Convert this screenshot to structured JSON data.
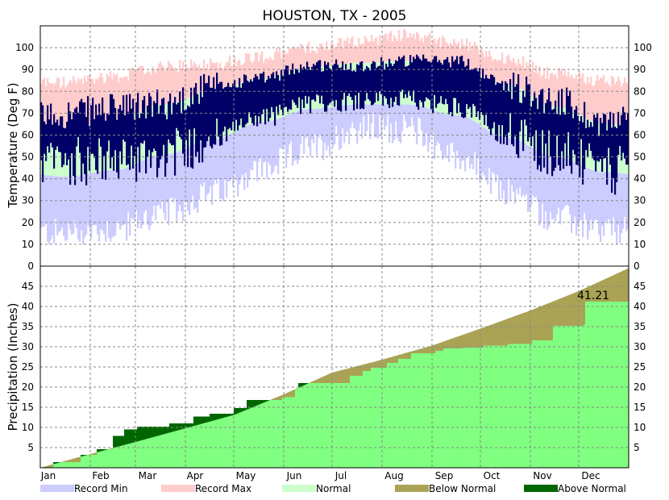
{
  "chart_data": {
    "type": "climate-summary",
    "title": "HOUSTON, TX - 2005",
    "year": 2005,
    "months": [
      "Jan",
      "Feb",
      "Mar",
      "Apr",
      "May",
      "Jun",
      "Jul",
      "Aug",
      "Sep",
      "Oct",
      "Nov",
      "Dec"
    ],
    "temperature": {
      "ylabel": "Temperature (Deg F)",
      "ylim": [
        0,
        110
      ],
      "yticks": [
        0,
        10,
        20,
        30,
        40,
        50,
        60,
        70,
        80,
        90,
        100
      ],
      "normal_high_monthly": [
        63,
        67,
        74,
        80,
        86,
        91,
        93,
        94,
        90,
        83,
        73,
        65
      ],
      "normal_low_monthly": [
        41,
        44,
        51,
        58,
        66,
        72,
        74,
        74,
        69,
        59,
        50,
        43
      ],
      "record_high_monthly": [
        84,
        87,
        91,
        93,
        96,
        100,
        103,
        106,
        102,
        95,
        88,
        85
      ],
      "record_low_monthly": [
        15,
        17,
        24,
        33,
        44,
        54,
        63,
        63,
        50,
        34,
        22,
        16
      ],
      "observed_high_monthly": [
        70,
        72,
        74,
        82,
        86,
        92,
        92,
        94,
        94,
        83,
        76,
        66
      ],
      "observed_low_monthly": [
        48,
        48,
        51,
        58,
        68,
        74,
        76,
        76,
        73,
        60,
        52,
        43
      ]
    },
    "precipitation": {
      "ylabel": "Precipitation (Inches)",
      "ylim": [
        0,
        50
      ],
      "yticks": [
        5,
        10,
        15,
        20,
        25,
        30,
        35,
        40,
        45
      ],
      "normal_cumulative_month_end": [
        3.4,
        6.4,
        9.8,
        13.1,
        18.2,
        23.6,
        26.8,
        30.3,
        34.5,
        39.0,
        43.8,
        49.5
      ],
      "observed_steps": [
        [
          0,
          0
        ],
        [
          8,
          1.4
        ],
        [
          25,
          3.2
        ],
        [
          35,
          4.6
        ],
        [
          45,
          7.9
        ],
        [
          52,
          9.5
        ],
        [
          60,
          10.2
        ],
        [
          80,
          11.0
        ],
        [
          95,
          12.7
        ],
        [
          105,
          13.4
        ],
        [
          120,
          14.8
        ],
        [
          128,
          16.8
        ],
        [
          150,
          17.5
        ],
        [
          158,
          19.5
        ],
        [
          160,
          21.0
        ],
        [
          175,
          21.0
        ],
        [
          190,
          21.0
        ],
        [
          192,
          22.8
        ],
        [
          200,
          24.0
        ],
        [
          205,
          24.8
        ],
        [
          215,
          26.0
        ],
        [
          222,
          27.0
        ],
        [
          230,
          28.4
        ],
        [
          245,
          29.0
        ],
        [
          250,
          29.6
        ],
        [
          262,
          29.8
        ],
        [
          275,
          30.3
        ],
        [
          290,
          30.7
        ],
        [
          305,
          31.6
        ],
        [
          318,
          35.2
        ],
        [
          337,
          35.5
        ],
        [
          338,
          41.21
        ],
        [
          365,
          41.21
        ]
      ],
      "total_label": "41.21"
    },
    "legend": [
      "Record Min",
      "Record Max",
      "Normal",
      "Below Normal",
      "Above Normal"
    ],
    "colors": {
      "record_min": "#ccccff",
      "record_max": "#ffcccc",
      "normal": "#ccffcc",
      "observed": "#000066",
      "below_normal": "#aaa355",
      "above_normal": "#006600",
      "observed_precip": "#80ff80"
    }
  }
}
